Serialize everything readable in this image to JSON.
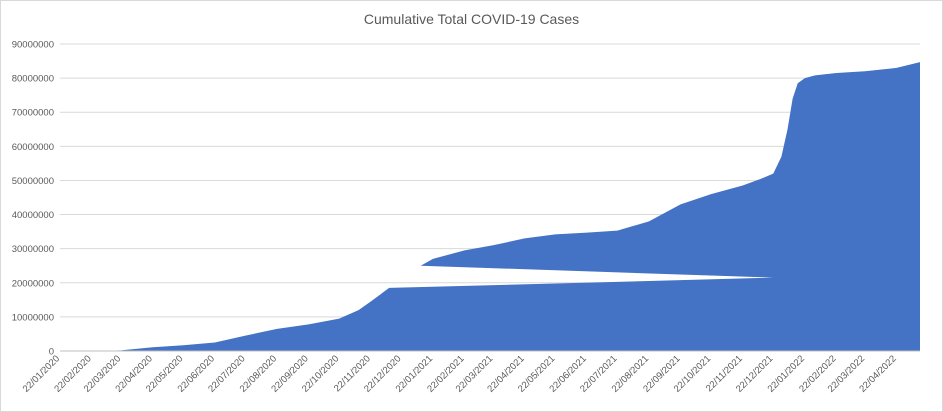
{
  "chart_data": {
    "type": "area",
    "title": "Cumulative Total COVID-19 Cases",
    "xlabel": "",
    "ylabel": "",
    "ylim": [
      0,
      90000000
    ],
    "y_ticks": [
      0,
      10000000,
      20000000,
      30000000,
      40000000,
      50000000,
      60000000,
      70000000,
      80000000,
      90000000
    ],
    "y_tick_labels": [
      "0",
      "10000000",
      "20000000",
      "30000000",
      "40000000",
      "50000000",
      "60000000",
      "70000000",
      "80000000",
      "90000000"
    ],
    "x_tick_labels": [
      "22/01/2020",
      "22/02/2020",
      "22/03/2020",
      "22/04/2020",
      "22/05/2020",
      "22/06/2020",
      "22/07/2020",
      "22/08/2020",
      "22/09/2020",
      "22/10/2020",
      "22/11/2020",
      "22/12/2020",
      "22/01/2021",
      "22/02/2021",
      "22/03/2021",
      "22/04/2021",
      "22/05/2021",
      "22/06/2021",
      "22/07/2021",
      "22/08/2021",
      "22/09/2021",
      "22/10/2021",
      "22/11/2021",
      "22/12/2021",
      "22/01/2022",
      "22/02/2022",
      "22/03/2022",
      "22/04/2022"
    ],
    "grid": true,
    "legend": "none",
    "color": "#4472c4",
    "series": [
      {
        "x": [
          "22/01/2020",
          "22/02/2020",
          "22/03/2020",
          "22/04/2020",
          "22/05/2020",
          "22/06/2020",
          "22/07/2020",
          "22/08/2020",
          "22/09/2020",
          "22/10/2020",
          "10/11/2020",
          "22/11/2020",
          "10/12/2020",
          "22/12/2021",
          "10/01/2021",
          "22/01/2021",
          "22/02/2021",
          "22/03/2021",
          "22/04/2021",
          "22/05/2021",
          "22/06/2021",
          "22/07/2021",
          "22/08/2021",
          "22/09/2021",
          "22/10/2021",
          "22/11/2021",
          "10/12/2021",
          "22/12/2021",
          "30/12/2021",
          "05/01/2022",
          "10/01/2022",
          "15/01/2022",
          "22/01/2022",
          "01/02/2022",
          "22/02/2022",
          "22/03/2022",
          "22/04/2022",
          "15/05/2022"
        ],
        "values": [
          0,
          10000,
          200000,
          1100000,
          1700000,
          2500000,
          4500000,
          6500000,
          7800000,
          9500000,
          12000000,
          14500000,
          18500000,
          21500000,
          25000000,
          27000000,
          29500000,
          31000000,
          33000000,
          34200000,
          34700000,
          35300000,
          38000000,
          43000000,
          46000000,
          48500000,
          50500000,
          52000000,
          57000000,
          65000000,
          74000000,
          78500000,
          80000000,
          80800000,
          81500000,
          82000000,
          83000000,
          84700000
        ]
      }
    ]
  }
}
